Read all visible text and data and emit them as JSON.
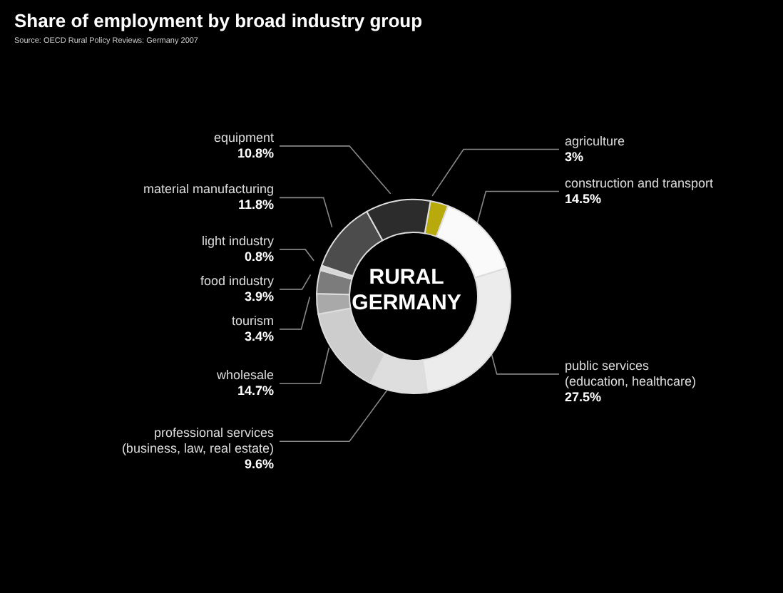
{
  "chart_data": {
    "type": "donut",
    "title": "Share of employment by broad industry group",
    "annotations": [
      "Source: OECD Rural Policy Reviews: Germany 2007",
      "RURAL GERMANY"
    ],
    "categories": [
      "agriculture",
      "construction and transport",
      "public services\n(education, healthcare)",
      "professional services\n(business, law, real estate)",
      "wholesale",
      "tourism",
      "food industry",
      "light industry",
      "material manufacturing",
      "equipment"
    ],
    "values": [
      3,
      14.5,
      27.5,
      9.6,
      14.7,
      3.4,
      3.9,
      0.8,
      11.8,
      10.8
    ],
    "value_labels": [
      "3%",
      "14.5%",
      "27.5%",
      "9.6%",
      "14.7%",
      "3.4%",
      "3.9%",
      "0.8%",
      "11.8%",
      "10.8%"
    ],
    "colors": [
      "#b8aa0c",
      "#fafafa",
      "#ececec",
      "#dedede",
      "#cdcdcd",
      "#a9a9a9",
      "#7c7c7c",
      "#d6d6d6",
      "#4c4c4c",
      "#2c2c2c"
    ],
    "legend": false
  }
}
